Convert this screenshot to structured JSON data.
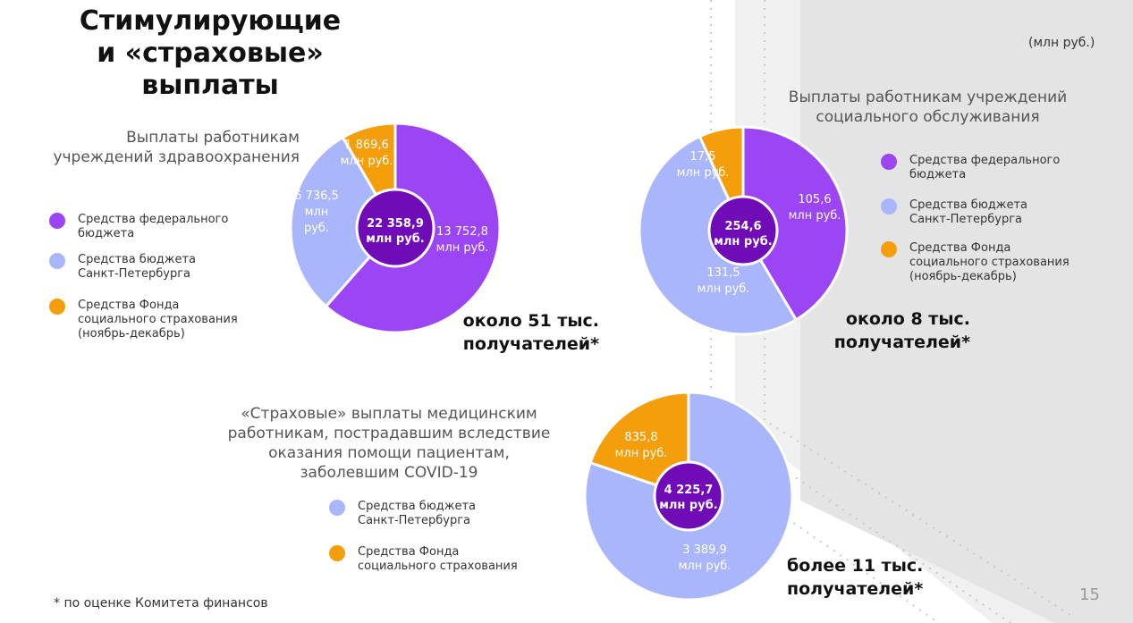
{
  "title": [
    "Стимулирующие",
    "и «страховые»",
    "выплаты"
  ],
  "unit_note": "(млн руб.)",
  "colors": {
    "federal": "#9b45f5",
    "spb": "#a9b6fb",
    "fss": "#f59e0b",
    "center": "#6f0bb7"
  },
  "chart_data": [
    {
      "type": "pie",
      "title_lines": [
        "Выплаты работникам",
        "учреждений здравоохранения"
      ],
      "series": [
        {
          "name": "Средства федерального бюджета",
          "value": 13752.8,
          "label": [
            "13 752,8",
            "млн руб."
          ],
          "color_key": "federal"
        },
        {
          "name": "Средства бюджета Санкт-Петербурга",
          "value": 6736.5,
          "label": [
            "6 736,5",
            "млн",
            "руб."
          ],
          "color_key": "spb"
        },
        {
          "name": "Средства Фонда социального страхования (ноябрь-декабрь)",
          "value": 1869.6,
          "label": [
            "1 869,6",
            "млн руб."
          ],
          "color_key": "fss"
        }
      ],
      "total": [
        "22 358,9",
        "млн руб."
      ],
      "legend": [
        {
          "label": [
            "Средства федерального",
            "бюджета"
          ],
          "color_key": "federal"
        },
        {
          "label": [
            "Средства бюджета",
            "Санкт-Петербурга"
          ],
          "color_key": "spb"
        },
        {
          "label": [
            "Средства Фонда",
            "социального страхования",
            "(ноябрь-декабрь)"
          ],
          "color_key": "fss"
        }
      ],
      "recipients": [
        "около 51 тыс.",
        "получателей*"
      ]
    },
    {
      "type": "pie",
      "title_lines": [
        "Выплаты работникам учреждений",
        "социального обслуживания"
      ],
      "series": [
        {
          "name": "Средства федерального бюджета",
          "value": 105.6,
          "label": [
            "105,6",
            "млн руб."
          ],
          "color_key": "federal"
        },
        {
          "name": "Средства бюджета Санкт-Петербурга",
          "value": 131.5,
          "label": [
            "131,5",
            "млн руб."
          ],
          "color_key": "spb"
        },
        {
          "name": "Средства Фонда социального страхования (ноябрь-декабрь)",
          "value": 17.5,
          "label": [
            "17,5",
            "млн руб."
          ],
          "color_key": "fss"
        }
      ],
      "total": [
        "254,6",
        "млн руб."
      ],
      "legend": [
        {
          "label": [
            "Средства федерального",
            "бюджета"
          ],
          "color_key": "federal"
        },
        {
          "label": [
            "Средства бюджета",
            "Санкт-Петербурга"
          ],
          "color_key": "spb"
        },
        {
          "label": [
            "Средства Фонда",
            "социального страхования",
            "(ноябрь-декабрь)"
          ],
          "color_key": "fss"
        }
      ],
      "recipients": [
        "около 8 тыс.",
        "получателей*"
      ]
    },
    {
      "type": "pie",
      "title_lines": [
        "«Страховые» выплаты медицинским",
        "работникам, пострадавшим вследствие",
        "оказания помощи пациентам,",
        "заболевшим COVID-19"
      ],
      "series": [
        {
          "name": "Средства бюджета Санкт-Петербурга",
          "value": 3389.9,
          "label": [
            "3 389,9",
            "млн руб."
          ],
          "color_key": "spb"
        },
        {
          "name": "Средства Фонда социального страхования",
          "value": 835.8,
          "label": [
            "835,8",
            "млн руб."
          ],
          "color_key": "fss"
        }
      ],
      "total": [
        "4 225,7",
        "млн руб."
      ],
      "legend": [
        {
          "label": [
            "Средства бюджета",
            "Санкт-Петербурга"
          ],
          "color_key": "spb"
        },
        {
          "label": [
            "Средства Фонда",
            "социального страхования"
          ],
          "color_key": "fss"
        }
      ],
      "recipients": [
        "более 11 тыс.",
        "получателей*"
      ]
    }
  ],
  "footnote": "* по оценке Комитета финансов",
  "page_number": "15"
}
